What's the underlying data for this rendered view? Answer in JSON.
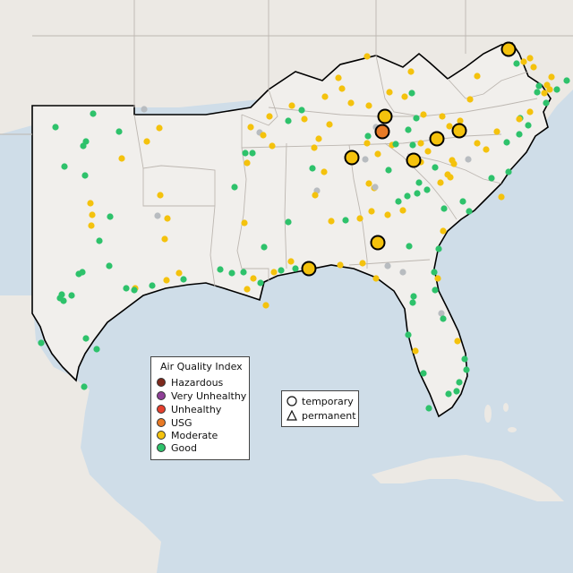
{
  "legend": {
    "title": "Air Quality Index",
    "categories": [
      {
        "label": "Hazardous",
        "color": "#7e2a1d"
      },
      {
        "label": "Very Unhealthy",
        "color": "#8f3f97"
      },
      {
        "label": "Unhealthy",
        "color": "#e6402e"
      },
      {
        "label": "USG",
        "color": "#e87a25"
      },
      {
        "label": "Moderate",
        "color": "#f4c20d"
      },
      {
        "label": "Good",
        "color": "#2ec26b"
      }
    ]
  },
  "monitor_types": {
    "temporary": "temporary",
    "permanent": "permanent"
  },
  "colors": {
    "water": "#cfdde8",
    "land": "#ece9e4",
    "focus_land": "#f1efec",
    "state_border": "#bdb7b1",
    "no_data": "#b8bcc0"
  }
}
